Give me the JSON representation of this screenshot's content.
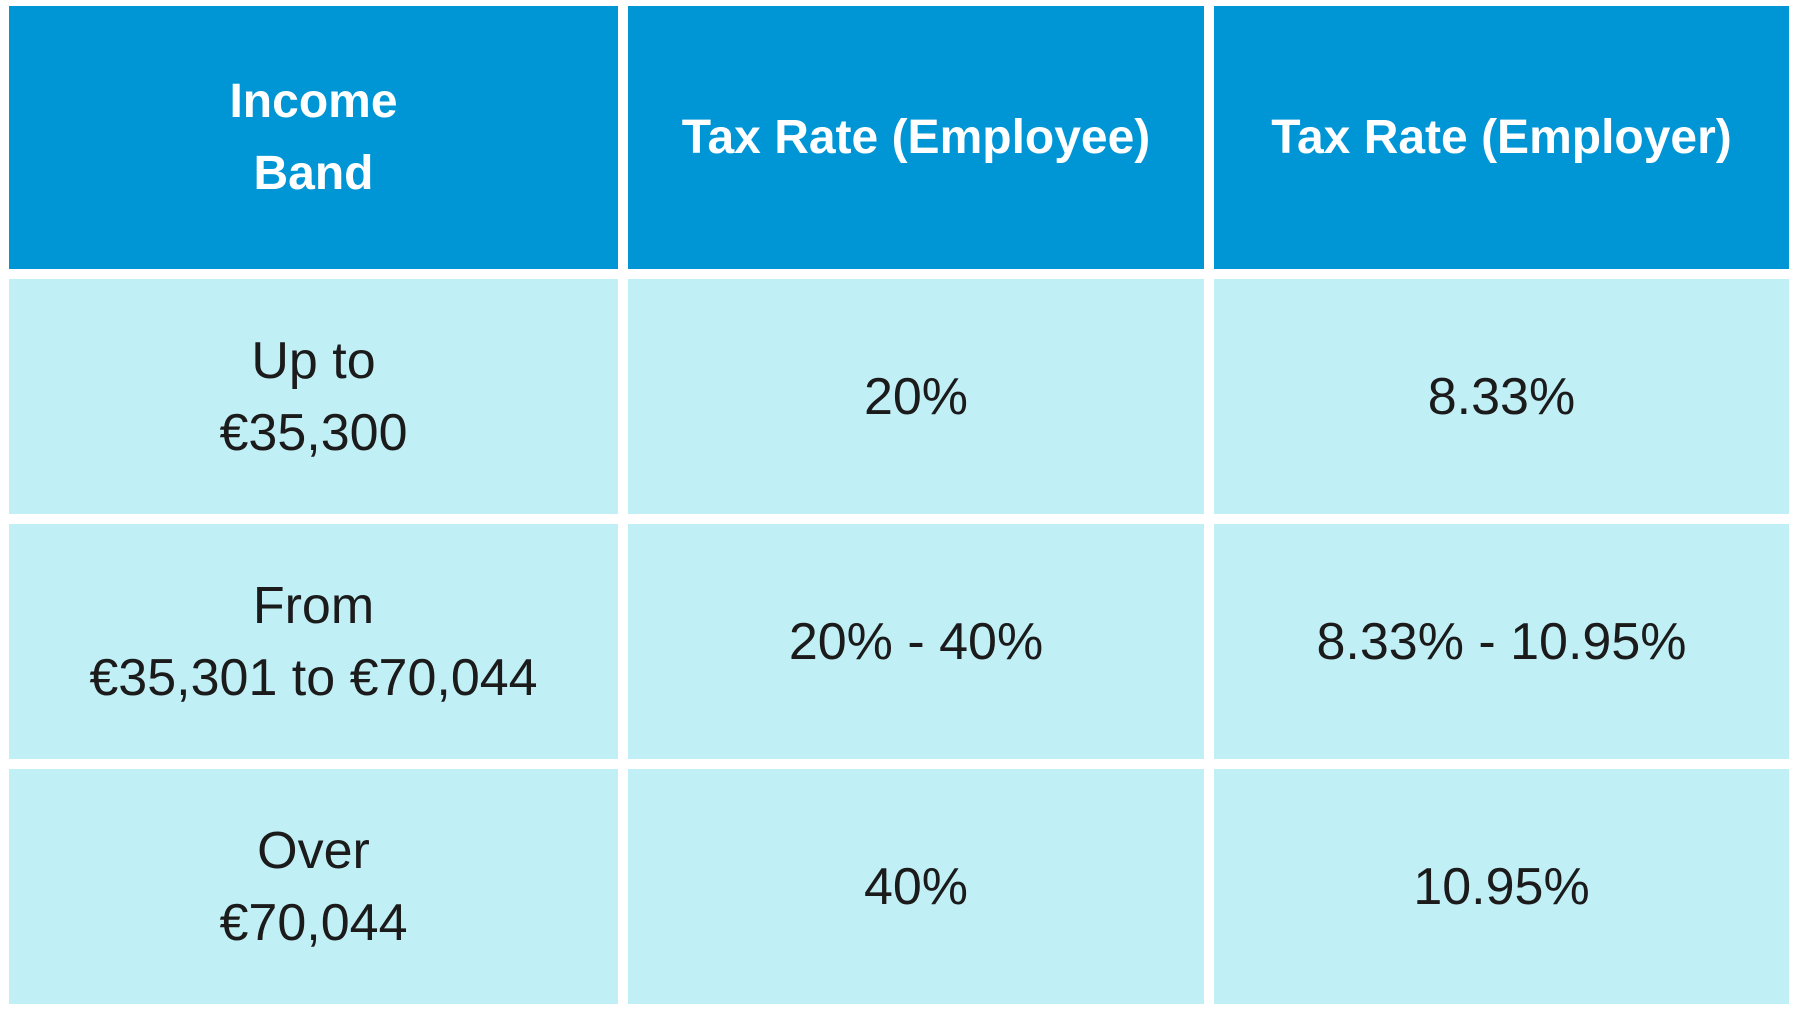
{
  "table": {
    "header": [
      [
        "Income",
        "Band"
      ],
      [
        "Tax Rate (Employee)"
      ],
      [
        "Tax Rate (Employer)"
      ]
    ],
    "rows": [
      [
        [
          "Up to",
          "€35,300"
        ],
        [
          "20%"
        ],
        [
          "8.33%"
        ]
      ],
      [
        [
          "From",
          "€35,301 to €70,044"
        ],
        [
          "20% - 40%"
        ],
        [
          "8.33% - 10.95%"
        ]
      ],
      [
        [
          "Over",
          "€70,044"
        ],
        [
          "40%"
        ],
        [
          "10.95%"
        ]
      ]
    ]
  }
}
